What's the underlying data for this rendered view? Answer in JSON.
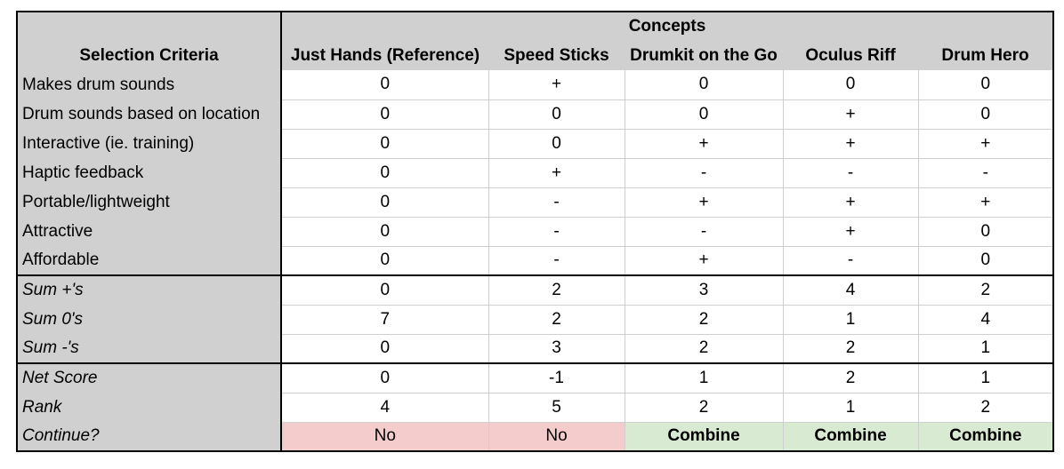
{
  "header": {
    "concepts_label": "Concepts",
    "criteria_label": "Selection Criteria",
    "columns": [
      "Just Hands (Reference)",
      "Speed Sticks",
      "Drumkit on the Go",
      "Oculus Riff",
      "Drum Hero"
    ]
  },
  "criteria_rows": [
    {
      "label": "Makes drum sounds",
      "values": [
        "0",
        "+",
        "0",
        "0",
        "0"
      ]
    },
    {
      "label": "Drum sounds based on location",
      "values": [
        "0",
        "0",
        "0",
        "+",
        "0"
      ]
    },
    {
      "label": "Interactive (ie. training)",
      "values": [
        "0",
        "0",
        "+",
        "+",
        "+"
      ]
    },
    {
      "label": "Haptic feedback",
      "values": [
        "0",
        "+",
        "-",
        "-",
        "-"
      ]
    },
    {
      "label": "Portable/lightweight",
      "values": [
        "0",
        "-",
        "+",
        "+",
        "+"
      ]
    },
    {
      "label": "Attractive",
      "values": [
        "0",
        "-",
        "-",
        "+",
        "0"
      ]
    },
    {
      "label": "Affordable",
      "values": [
        "0",
        "-",
        "+",
        "-",
        "0"
      ]
    }
  ],
  "sum_rows": [
    {
      "label": "Sum +'s",
      "values": [
        "0",
        "2",
        "3",
        "4",
        "2"
      ]
    },
    {
      "label": "Sum 0's",
      "values": [
        "7",
        "2",
        "2",
        "1",
        "4"
      ]
    },
    {
      "label": "Sum -'s",
      "values": [
        "0",
        "3",
        "2",
        "2",
        "1"
      ]
    }
  ],
  "score_rows": [
    {
      "label": "Net Score",
      "values": [
        "0",
        "-1",
        "1",
        "2",
        "1"
      ]
    },
    {
      "label": "Rank",
      "values": [
        "4",
        "5",
        "2",
        "1",
        "2"
      ]
    }
  ],
  "continue_row": {
    "label": "Continue?",
    "values": [
      "No",
      "No",
      "Combine",
      "Combine",
      "Combine"
    ],
    "status": [
      "no",
      "no",
      "yes",
      "yes",
      "yes"
    ]
  },
  "colors": {
    "header_gray": "#d0d0d0",
    "no_red": "#f4cccc",
    "combine_green": "#d9ead3"
  }
}
